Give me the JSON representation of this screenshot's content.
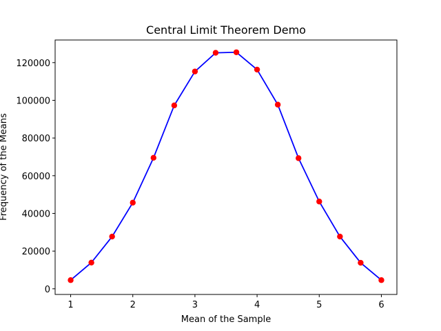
{
  "chart_data": {
    "type": "line",
    "title": "Central Limit Theorem Demo",
    "xlabel": "Mean of the Sample",
    "ylabel": "Frequency of the Means",
    "xlim": [
      0.75,
      6.25
    ],
    "ylim": [
      -3000,
      132000
    ],
    "xticks": [
      1,
      2,
      3,
      4,
      5,
      6
    ],
    "yticks": [
      0,
      20000,
      40000,
      60000,
      80000,
      100000,
      120000
    ],
    "grid": false,
    "series": [
      {
        "line_color": "#0000ff",
        "marker_color": "#ff0000",
        "x": [
          1,
          1.3333,
          1.6667,
          2,
          2.3333,
          2.6667,
          3,
          3.3333,
          3.6667,
          4,
          4.3333,
          4.6667,
          5,
          5.3333,
          5.6667,
          6
        ],
        "y": [
          4600,
          13900,
          27700,
          45700,
          69500,
          97300,
          115300,
          125200,
          125500,
          116300,
          97700,
          69300,
          46300,
          27700,
          13800,
          4600
        ]
      }
    ]
  }
}
